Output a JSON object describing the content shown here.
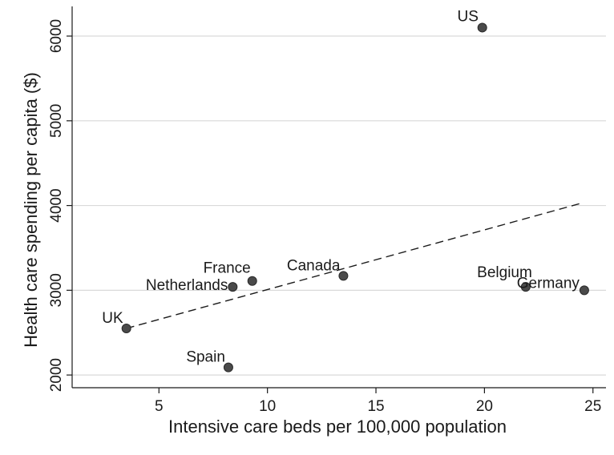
{
  "chart_data": {
    "type": "scatter",
    "xlabel": "Intensive care beds per 100,000 population",
    "ylabel": "Health care spending per capita ($)",
    "xlim": [
      1.0,
      25.6
    ],
    "ylim": [
      1850,
      6350
    ],
    "x_ticks": [
      {
        "value": 5,
        "label": "5"
      },
      {
        "value": 10,
        "label": "10"
      },
      {
        "value": 15,
        "label": "15"
      },
      {
        "value": 20,
        "label": "20"
      },
      {
        "value": 25,
        "label": "25"
      }
    ],
    "y_ticks": [
      {
        "value": 2000,
        "label": "2000"
      },
      {
        "value": 3000,
        "label": "3000"
      },
      {
        "value": 4000,
        "label": "4000"
      },
      {
        "value": 5000,
        "label": "5000"
      },
      {
        "value": 6000,
        "label": "6000"
      }
    ],
    "grid": "horizontal",
    "points": [
      {
        "label": "US",
        "x": 19.9,
        "y": 6100
      },
      {
        "label": "France",
        "x": 9.3,
        "y": 3110
      },
      {
        "label": "Netherlands",
        "x": 8.4,
        "y": 3040
      },
      {
        "label": "Canada",
        "x": 13.5,
        "y": 3170
      },
      {
        "label": "Belgium",
        "x": 21.9,
        "y": 3040
      },
      {
        "label": "Germany",
        "x": 24.6,
        "y": 3000
      },
      {
        "label": "UK",
        "x": 3.5,
        "y": 2550
      },
      {
        "label": "Spain",
        "x": 8.2,
        "y": 2090
      }
    ],
    "trend_line": {
      "style": "dashed",
      "x": [
        3.5,
        24.5
      ],
      "y": [
        2550,
        4030
      ]
    },
    "colors": {
      "points": "#4a4a4a",
      "grid": "#d9d9d9",
      "axis": "#1a1a1a"
    }
  }
}
